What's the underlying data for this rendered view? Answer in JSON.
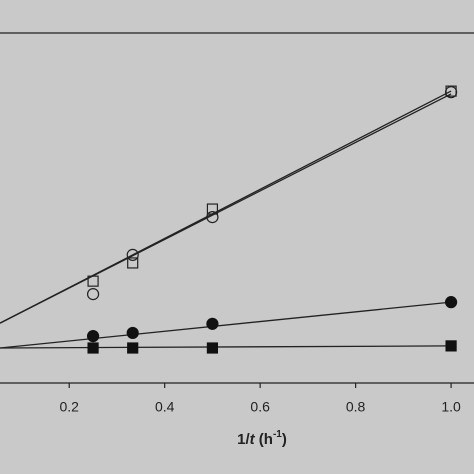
{
  "chart_data": {
    "type": "scatter",
    "x_label_parts": [
      "1/",
      "t",
      " (h",
      "-1",
      ")"
    ],
    "xlim": [
      0.055,
      1.048
    ],
    "xticks": [
      0.2,
      0.4,
      0.6,
      0.8,
      {
        "value": 1.0,
        "label": "1.0"
      }
    ],
    "ylim": [
      0,
      1
    ],
    "series": [
      {
        "marker": "square",
        "filled": false,
        "color": "#222",
        "x": [
          0.25,
          0.333,
          0.5,
          1.0
        ],
        "values": [
          0.291,
          0.343,
          0.497,
          0.834
        ]
      },
      {
        "marker": "circle",
        "filled": false,
        "color": "#222",
        "x": [
          0.25,
          0.333,
          0.5,
          1.0
        ],
        "values": [
          0.254,
          0.366,
          0.474,
          0.831
        ]
      },
      {
        "marker": "circle",
        "filled": true,
        "color": "#111",
        "x": [
          0.25,
          0.333,
          0.5,
          1.0
        ],
        "values": [
          0.134,
          0.143,
          0.169,
          0.231
        ]
      },
      {
        "marker": "square",
        "filled": true,
        "color": "#111",
        "x": [
          0.25,
          0.333,
          0.5,
          1.0
        ],
        "values": [
          0.1,
          0.1,
          0.1,
          0.106
        ]
      }
    ],
    "lines": [
      {
        "x": [
          0.055,
          1.0
        ],
        "values": [
          0.171,
          0.834
        ]
      },
      {
        "x": [
          0.055,
          1.0
        ],
        "values": [
          0.171,
          0.826
        ]
      },
      {
        "x": [
          0.055,
          1.0
        ],
        "values": [
          0.1,
          0.231
        ]
      },
      {
        "x": [
          0.055,
          1.0
        ],
        "values": [
          0.1,
          0.106
        ]
      }
    ]
  }
}
